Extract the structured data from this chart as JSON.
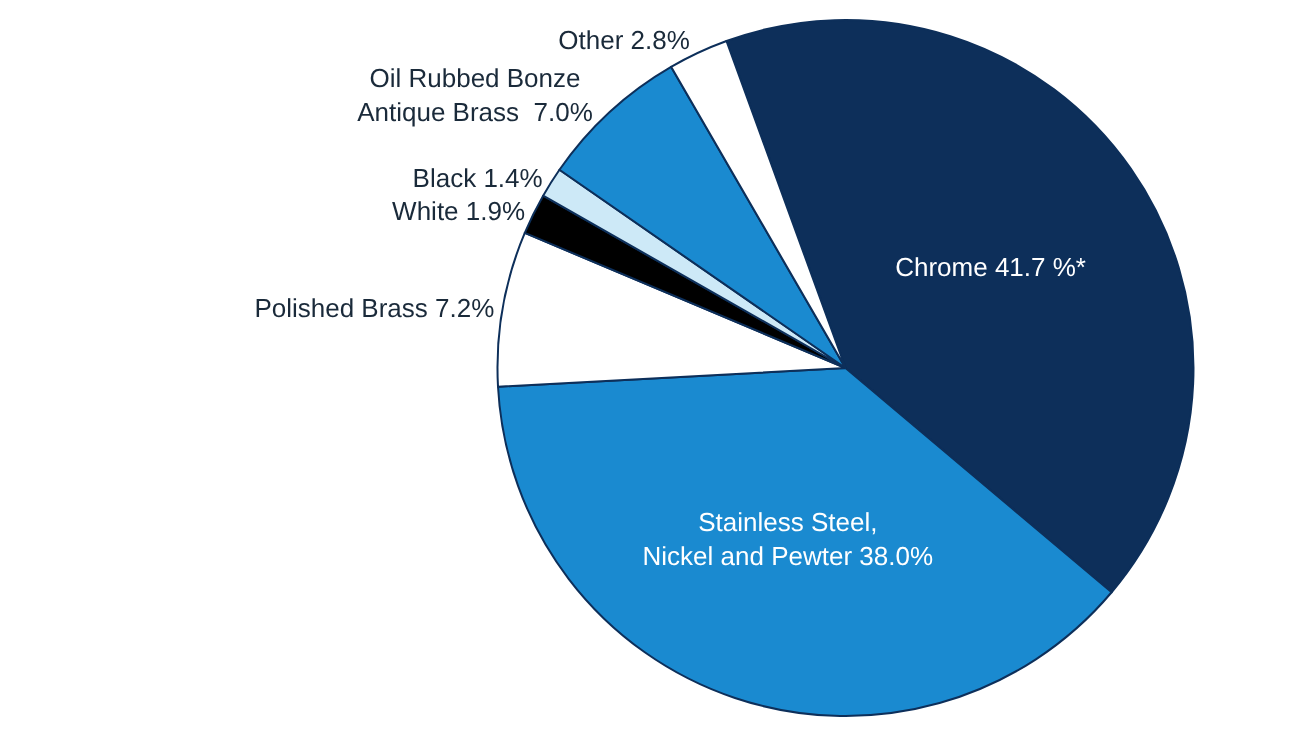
{
  "chart_data": {
    "type": "pie",
    "categories": [
      "Chrome",
      "Stainless Steel,\nNickel and Pewter",
      "Polished Brass",
      "White",
      "Black",
      "Oil Rubbed Bonze\nAntique Brass",
      "Other"
    ],
    "values": [
      41.7,
      38.0,
      7.2,
      1.9,
      1.4,
      7.0,
      2.8
    ],
    "value_labels": [
      "41.7 %*",
      "38.0%",
      "7.2%",
      "1.9%",
      "1.4%",
      " 7.0%",
      "2.8%"
    ],
    "colors": [
      "#0d2f5a",
      "#1a8ad0",
      "#ffffff",
      "#000000",
      "#cde9f7",
      "#1a8ad0",
      "#ffffff"
    ]
  }
}
